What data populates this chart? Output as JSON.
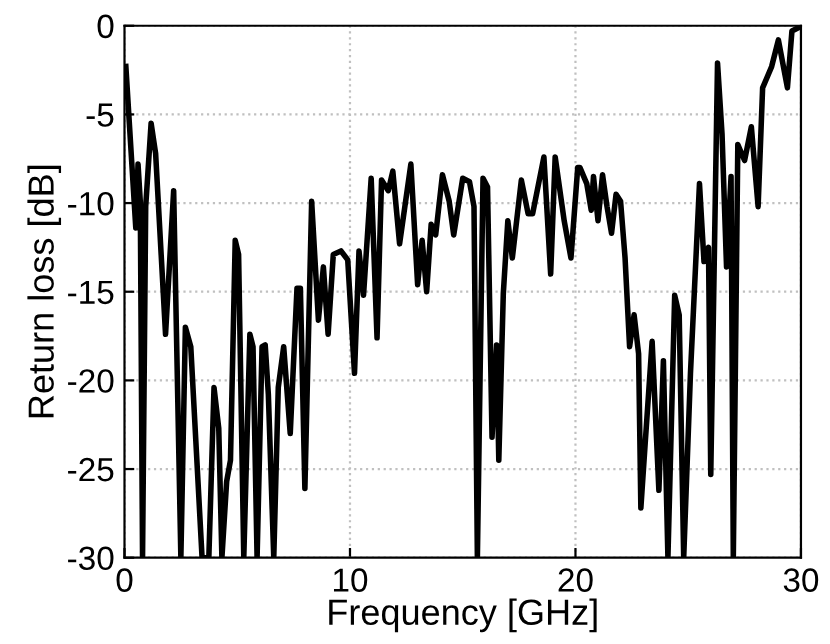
{
  "chart_data": {
    "type": "line",
    "xlabel": "Frequency [GHz]",
    "ylabel": "Return loss [dB]",
    "xlim": [
      0,
      30
    ],
    "ylim": [
      -30,
      0
    ],
    "xticks": [
      0,
      10,
      20,
      30
    ],
    "yticks": [
      -30,
      -25,
      -20,
      -15,
      -10,
      -5,
      0
    ],
    "grid": true,
    "line_style": "solid",
    "marker": "none",
    "series": [
      {
        "color": "#000000",
        "x": [
          0.06,
          0.5,
          0.6,
          0.7,
          0.8,
          0.94,
          1.18,
          1.38,
          1.82,
          2.18,
          2.5,
          2.7,
          2.94,
          3.44,
          3.74,
          3.97,
          4.18,
          4.32,
          4.53,
          4.7,
          4.91,
          5.06,
          5.29,
          5.56,
          5.7,
          5.88,
          6.1,
          6.24,
          6.38,
          6.62,
          6.82,
          7.06,
          7.35,
          7.65,
          7.8,
          8.0,
          8.3,
          8.6,
          8.82,
          9.03,
          9.26,
          9.6,
          9.9,
          10.2,
          10.4,
          10.6,
          10.94,
          11.2,
          11.4,
          11.7,
          11.9,
          12.2,
          12.7,
          13.0,
          13.2,
          13.4,
          13.6,
          13.8,
          14.1,
          14.4,
          14.6,
          15.0,
          15.3,
          15.5,
          15.65,
          15.9,
          16.1,
          16.3,
          16.5,
          16.6,
          16.8,
          17.0,
          17.2,
          17.6,
          17.9,
          18.1,
          18.6,
          18.9,
          19.1,
          19.5,
          19.8,
          20.1,
          20.2,
          20.5,
          20.7,
          20.8,
          21.0,
          21.2,
          21.4,
          21.6,
          21.8,
          22.0,
          22.2,
          22.4,
          22.6,
          22.8,
          22.9,
          23.1,
          23.4,
          23.7,
          23.9,
          24.1,
          24.4,
          24.6,
          24.8,
          25.1,
          25.5,
          25.7,
          25.9,
          26.0,
          26.3,
          26.5,
          26.7,
          26.9,
          27.0,
          27.2,
          27.5,
          27.8,
          28.1,
          28.3,
          28.7,
          29.0,
          29.4,
          29.6,
          29.9
        ],
        "values": [
          -2.3,
          -11.4,
          -7.8,
          -9.9,
          -30,
          -10.2,
          -5.5,
          -7.2,
          -17.4,
          -9.3,
          -30,
          -17,
          -18.1,
          -30,
          -30,
          -20.4,
          -22.7,
          -30,
          -25.7,
          -24.5,
          -12.1,
          -12.9,
          -30,
          -17.4,
          -18.1,
          -30,
          -18.1,
          -18,
          -20.8,
          -30,
          -20.4,
          -18.1,
          -23,
          -14.8,
          -14.8,
          -26.1,
          -9.9,
          -16.6,
          -13.6,
          -17.4,
          -12.9,
          -12.7,
          -13.2,
          -19.6,
          -12.7,
          -15.2,
          -8.6,
          -17.6,
          -8.7,
          -9.3,
          -8.2,
          -12.3,
          -7.8,
          -14.6,
          -12.1,
          -15,
          -11.2,
          -11.8,
          -8.4,
          -9.9,
          -11.8,
          -8.6,
          -8.8,
          -10.2,
          -30,
          -8.6,
          -9.1,
          -23.2,
          -18,
          -24.5,
          -15.1,
          -11,
          -13.1,
          -8.7,
          -10.6,
          -10.6,
          -7.4,
          -14,
          -7.4,
          -11,
          -13.1,
          -8,
          -8,
          -8.9,
          -10.4,
          -8.5,
          -11,
          -8.4,
          -10.2,
          -11.7,
          -9.5,
          -9.9,
          -13.1,
          -18.1,
          -16.3,
          -18.5,
          -27.2,
          -23.4,
          -17.8,
          -26.2,
          -18.9,
          -30,
          -15.2,
          -16.3,
          -30,
          -19.6,
          -8.9,
          -13.3,
          -12.5,
          -25.3,
          -2.1,
          -6.1,
          -13.6,
          -8.5,
          -30,
          -6.7,
          -7.6,
          -5.7,
          -10.2,
          -3.5,
          -2.3,
          -0.8,
          -3.5,
          -0.3,
          -0.1
        ]
      }
    ]
  }
}
